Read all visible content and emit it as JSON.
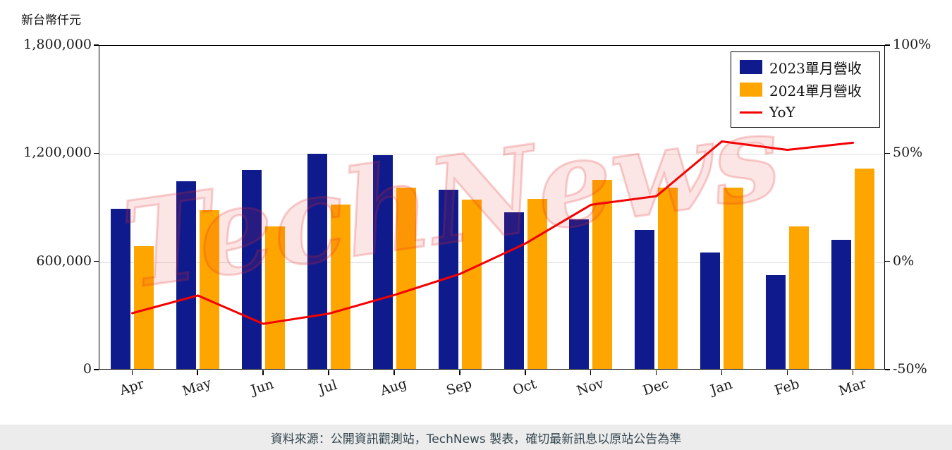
{
  "chart_data": {
    "type": "bar+line",
    "y_axis_title": "新台幣仟元",
    "categories": [
      "Apr",
      "May",
      "Jun",
      "Jul",
      "Aug",
      "Sep",
      "Oct",
      "Nov",
      "Dec",
      "Jan",
      "Feb",
      "Mar"
    ],
    "series": [
      {
        "name": "2023單月營收",
        "color": "#0f1b8d",
        "values": [
          890000,
          1040000,
          1105000,
          1195000,
          1185000,
          995000,
          870000,
          830000,
          770000,
          645000,
          520000,
          715000
        ]
      },
      {
        "name": "2024單月營收",
        "color": "#ffa500",
        "values": [
          680000,
          880000,
          790000,
          910000,
          1005000,
          940000,
          945000,
          1050000,
          1005000,
          1005000,
          790000,
          1110000
        ]
      }
    ],
    "line_series": {
      "name": "YoY",
      "color": "#f40000",
      "values": [
        -23.6,
        -15.4,
        -28.5,
        -23.8,
        -15.2,
        -5.5,
        8.6,
        26.5,
        30.5,
        55.8,
        51.9,
        55.2
      ]
    },
    "left_axis": {
      "min": 0,
      "max": 1800000,
      "ticks_top_to_bottom": [
        "1,800,000",
        "1,200,000",
        "600,000",
        "0"
      ]
    },
    "right_axis": {
      "min": -50,
      "max": 100,
      "ticks_top_to_bottom": [
        "100%",
        "50%",
        "0%",
        "-50%"
      ]
    },
    "legend_position": "top-right",
    "grid": "horizontal",
    "watermark": "TechNews",
    "footer": "資料來源：公開資訊觀測站，TechNews 製表，確切最新訊息以原站公告為準"
  }
}
